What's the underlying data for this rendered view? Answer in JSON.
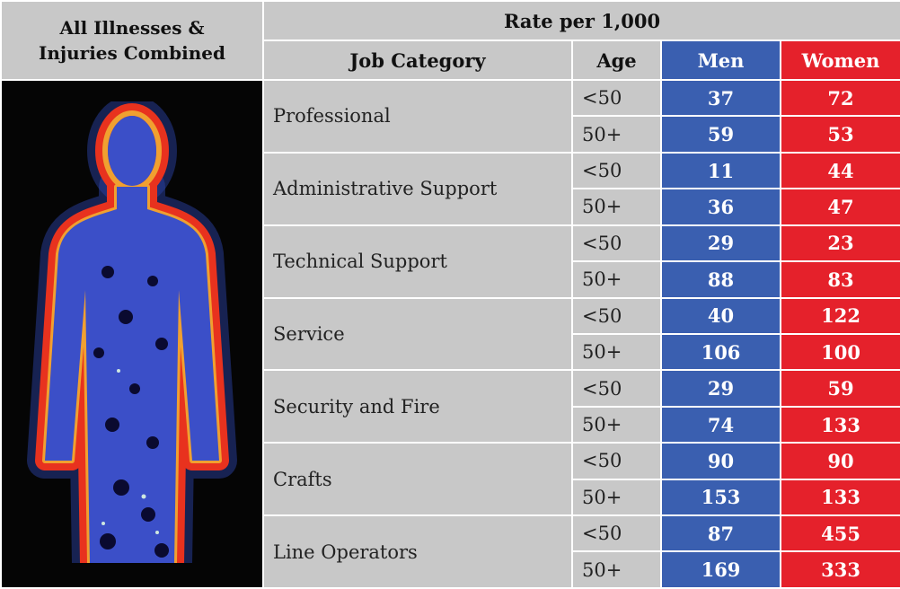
{
  "corner": [
    "All Illnesses &",
    "Injuries Combined"
  ],
  "group_header": "Rate per 1,000",
  "columns": [
    "Job Category",
    "Age",
    "Men",
    "Women"
  ],
  "rows": [
    {
      "category": "Professional",
      "ages": [
        {
          "age": "<50",
          "men": "37",
          "women": "72"
        },
        {
          "age": "50+",
          "men": "59",
          "women": "53"
        }
      ]
    },
    {
      "category": "Administrative Support",
      "ages": [
        {
          "age": "<50",
          "men": "11",
          "women": "44"
        },
        {
          "age": "50+",
          "men": "36",
          "women": "47"
        }
      ]
    },
    {
      "category": "Technical Support",
      "ages": [
        {
          "age": "<50",
          "men": "29",
          "women": "23"
        },
        {
          "age": "50+",
          "men": "88",
          "women": "83"
        }
      ]
    },
    {
      "category": "Service",
      "ages": [
        {
          "age": "<50",
          "men": "40",
          "women": "122"
        },
        {
          "age": "50+",
          "men": "106",
          "women": "100"
        }
      ]
    },
    {
      "category": "Security and Fire",
      "ages": [
        {
          "age": "<50",
          "men": "29",
          "women": "59"
        },
        {
          "age": "50+",
          "men": "74",
          "women": "133"
        }
      ]
    },
    {
      "category": "Crafts",
      "ages": [
        {
          "age": "<50",
          "men": "90",
          "women": "90"
        },
        {
          "age": "50+",
          "men": "153",
          "women": "133"
        }
      ]
    },
    {
      "category": "Line Operators",
      "ages": [
        {
          "age": "<50",
          "men": "87",
          "women": "455"
        },
        {
          "age": "50+",
          "men": "169",
          "women": "333"
        }
      ]
    }
  ]
}
